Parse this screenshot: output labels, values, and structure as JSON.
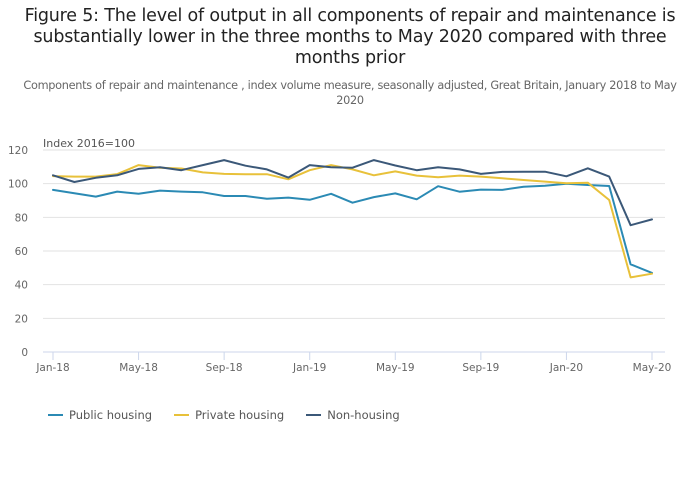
{
  "title": "Figure 5: The level of output in all components of repair and maintenance is substantially lower in the three months to May 2020 compared with three months prior",
  "subtitle": "Components of repair and maintenance , index volume measure, seasonally adjusted, Great Britain, January 2018 to May 2020",
  "chart_data": {
    "type": "line",
    "title": "Figure 5: The level of output in all components of repair and maintenance is substantially lower in the three months to May 2020 compared with three months prior",
    "subtitle": "Components of repair and maintenance , index volume measure, seasonally adjusted, Great Britain, January 2018 to May 2020",
    "ylabel": "Index 2016=100",
    "xlabel": "",
    "ylim": [
      0,
      120
    ],
    "yticks": [
      0,
      20,
      40,
      60,
      80,
      100,
      120
    ],
    "grid": true,
    "legend_position": "bottom-left",
    "x": [
      "Jan-18",
      "Feb-18",
      "Mar-18",
      "Apr-18",
      "May-18",
      "Jun-18",
      "Jul-18",
      "Aug-18",
      "Sep-18",
      "Oct-18",
      "Nov-18",
      "Dec-18",
      "Jan-19",
      "Feb-19",
      "Mar-19",
      "Apr-19",
      "May-19",
      "Jun-19",
      "Jul-19",
      "Aug-19",
      "Sep-19",
      "Oct-19",
      "Nov-19",
      "Dec-19",
      "Jan-20",
      "Feb-20",
      "Mar-20",
      "Apr-20",
      "May-20"
    ],
    "xtick_labels": [
      "Jan-18",
      "May-18",
      "Sep-18",
      "Jan-19",
      "May-19",
      "Sep-19",
      "Jan-20",
      "May-20"
    ],
    "series": [
      {
        "name": "Public housing",
        "color": "#2b8ab4",
        "values": [
          96.3,
          94.3,
          92.3,
          95.3,
          94.0,
          95.9,
          95.3,
          94.9,
          92.7,
          92.7,
          91.0,
          91.7,
          90.4,
          94.0,
          88.7,
          92.0,
          94.2,
          90.7,
          98.5,
          95.2,
          96.5,
          96.3,
          98.2,
          98.8,
          100.0,
          99.2,
          98.6,
          52.1,
          47.0
        ]
      },
      {
        "name": "Private housing",
        "color": "#e8c13a",
        "values": [
          104.5,
          104.2,
          104.2,
          105.7,
          111.0,
          109.5,
          109.0,
          106.7,
          105.8,
          105.6,
          105.6,
          102.6,
          108.0,
          111.0,
          108.5,
          105.0,
          107.3,
          104.8,
          103.8,
          104.8,
          104.2,
          103.2,
          102.2,
          101.2,
          100.3,
          100.6,
          90.3,
          44.3,
          46.5
        ]
      },
      {
        "name": "Non-housing",
        "color": "#3b5878",
        "values": [
          105.0,
          101.0,
          103.5,
          105.0,
          108.8,
          109.7,
          108.0,
          111.0,
          114.0,
          110.7,
          108.5,
          103.6,
          111.0,
          109.7,
          109.5,
          114.0,
          110.8,
          108.0,
          109.7,
          108.5,
          105.8,
          107.0,
          107.1,
          107.1,
          104.4,
          109.1,
          104.2,
          75.3,
          78.8
        ]
      }
    ]
  },
  "legend": {
    "items": [
      {
        "label": "Public housing",
        "color": "#2b8ab4"
      },
      {
        "label": "Private housing",
        "color": "#e8c13a"
      },
      {
        "label": "Non-housing",
        "color": "#3b5878"
      }
    ]
  }
}
